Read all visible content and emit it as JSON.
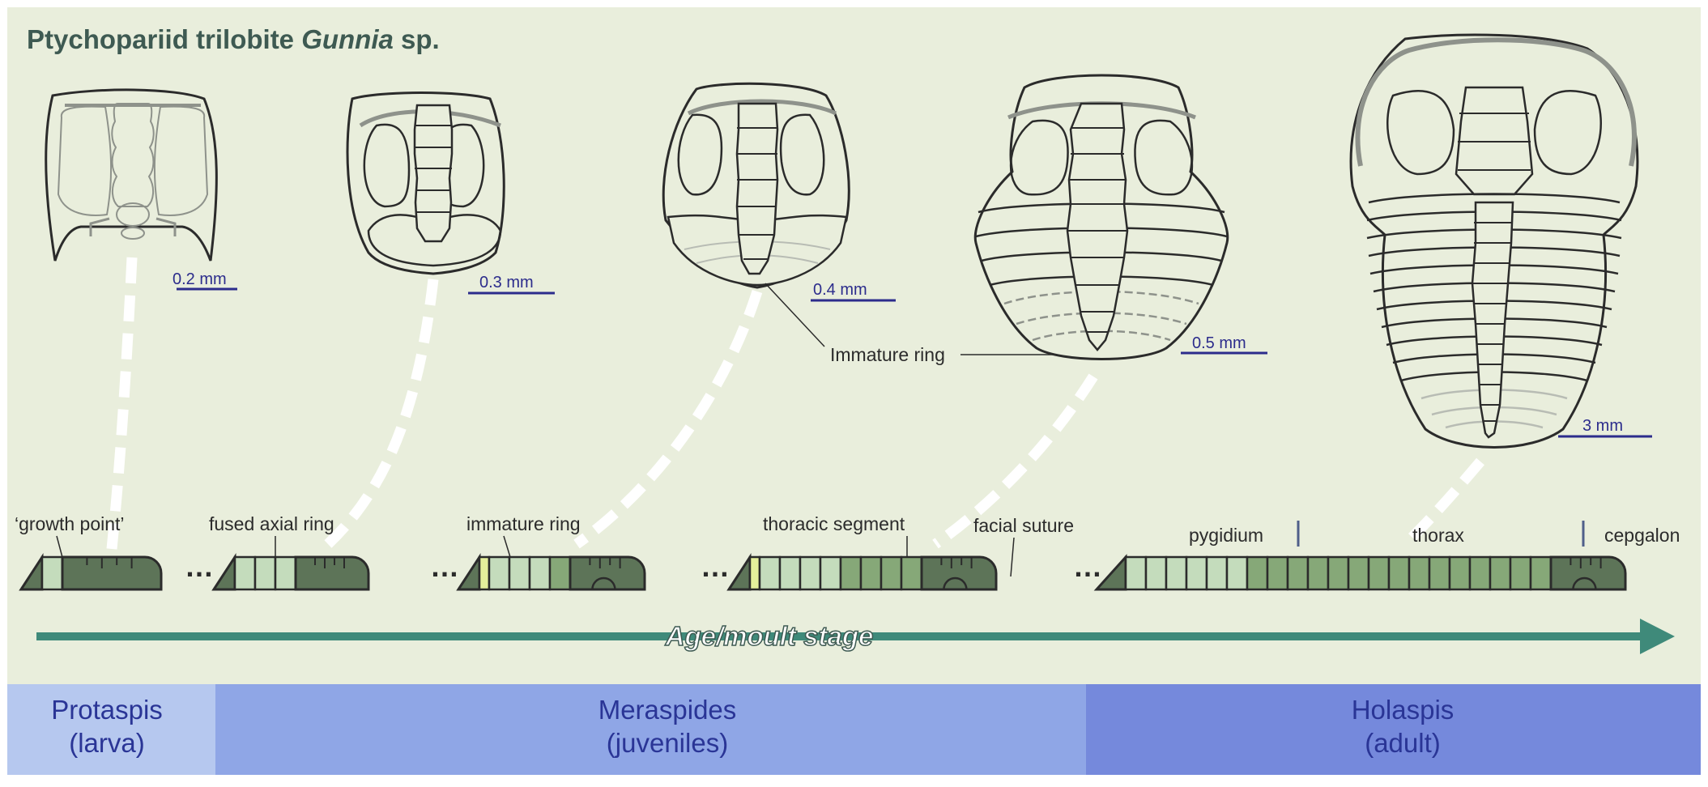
{
  "title": {
    "prefix": "Ptychopariid trilobite ",
    "genus": "Gunnia",
    "suffix": " sp."
  },
  "scale_bars": [
    "0.2 mm",
    "0.3 mm",
    "0.4 mm",
    "0.5 mm",
    "3 mm"
  ],
  "annotations": {
    "immature_ring": "Immature ring"
  },
  "segment_labels": {
    "growth_point": "‘growth point’",
    "fused_axial_ring": "fused axial ring",
    "immature_ring": "immature ring",
    "thoracic_segment": "thoracic segment",
    "facial_suture": "facial suture",
    "pygidium": "pygidium",
    "thorax": "thorax",
    "cephalon": "cepgalon"
  },
  "ellipsis": "…",
  "arrow_label": "Age/moult stage",
  "stages": [
    {
      "name": "Protaspis",
      "sub": "(larva)"
    },
    {
      "name": "Meraspides",
      "sub": "(juveniles)"
    },
    {
      "name": "Holaspis",
      "sub": "(adult)"
    }
  ],
  "colors": {
    "background": "#e9eedc",
    "outline": "#2b2b2b",
    "inner_line": "#8e928b",
    "scale_bar": "#2c2c8c",
    "title": "#3e5a52",
    "arrow": "#3f8a7a",
    "seg_dark": "#5d7458",
    "seg_mid": "#86a878",
    "seg_light": "#c4dcbc",
    "seg_new": "#e4ef9b",
    "band_protaspis": "#b6c8ef",
    "band_meraspides": "#8fa6e6",
    "band_holaspis": "#7589dc",
    "band_text": "#2a3596"
  }
}
